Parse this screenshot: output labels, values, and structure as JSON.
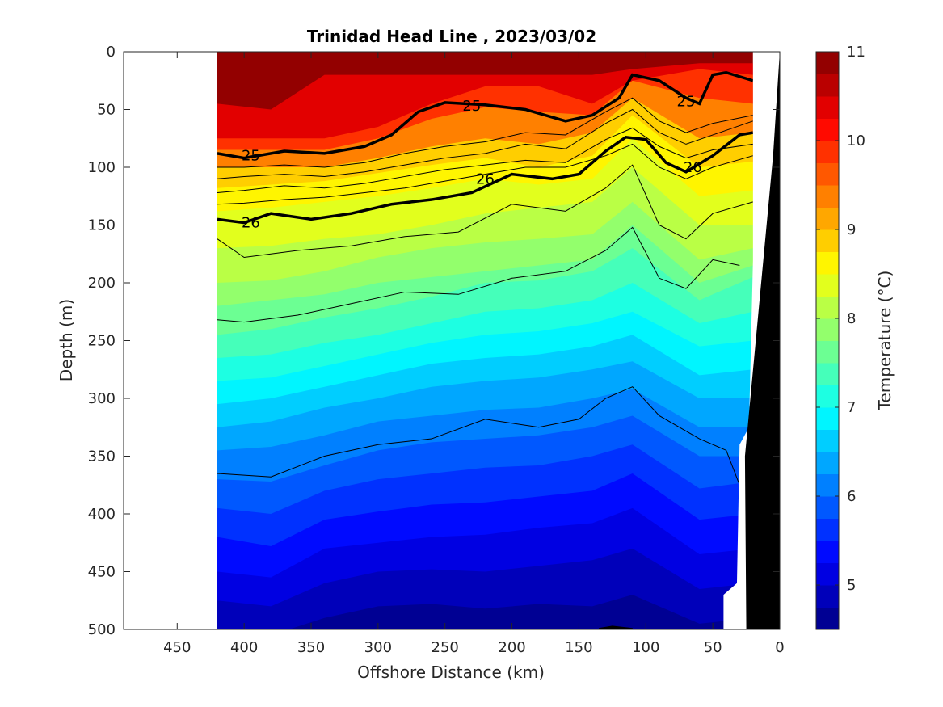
{
  "chart_data": {
    "type": "contourf",
    "title": "Trinidad Head Line , 2023/03/02",
    "xlabel": "Offshore Distance (km)",
    "ylabel": "Depth (m)",
    "colorbar_label": "Temperature (°C)",
    "xlim": [
      490,
      0
    ],
    "ylim": [
      0,
      500
    ],
    "x_reversed": true,
    "y_reversed": true,
    "x_ticks": [
      450,
      400,
      350,
      300,
      250,
      200,
      150,
      100,
      50,
      0
    ],
    "y_ticks": [
      0,
      50,
      100,
      150,
      200,
      250,
      300,
      350,
      400,
      450,
      500
    ],
    "colorbar": {
      "range": [
        4.5,
        11
      ],
      "step": 0.25,
      "ticks": [
        5,
        6,
        7,
        8,
        9,
        10,
        11
      ],
      "colormap": "jet"
    },
    "data_extent_km": [
      420,
      20
    ],
    "coastline_color": "#000000",
    "temperature_isotherms": [
      {
        "value": 10.5,
        "depth": [
          45,
          50,
          20,
          20,
          20,
          20,
          20,
          20,
          15,
          10,
          10
        ]
      },
      {
        "value": 10.0,
        "depth": [
          75,
          75,
          75,
          65,
          45,
          30,
          30,
          45,
          25,
          15,
          20
        ]
      },
      {
        "value": 9.5,
        "depth": [
          85,
          85,
          85,
          75,
          58,
          48,
          52,
          55,
          25,
          40,
          45
        ]
      },
      {
        "value": 9.0,
        "depth": [
          100,
          100,
          100,
          92,
          82,
          75,
          80,
          70,
          40,
          75,
          70
        ]
      },
      {
        "value": 8.75,
        "depth": [
          118,
          115,
          112,
          105,
          98,
          92,
          100,
          90,
          55,
          100,
          95
        ]
      },
      {
        "value": 8.5,
        "depth": [
          138,
          135,
          130,
          125,
          118,
          110,
          115,
          110,
          75,
          125,
          120
        ]
      },
      {
        "value": 8.25,
        "depth": [
          170,
          168,
          162,
          158,
          150,
          140,
          135,
          130,
          100,
          150,
          150
        ]
      },
      {
        "value": 8.0,
        "depth": [
          200,
          198,
          190,
          178,
          170,
          165,
          162,
          158,
          130,
          180,
          170
        ]
      },
      {
        "value": 7.75,
        "depth": [
          220,
          215,
          210,
          200,
          195,
          190,
          185,
          180,
          150,
          200,
          185
        ]
      },
      {
        "value": 7.5,
        "depth": [
          245,
          240,
          230,
          222,
          212,
          200,
          198,
          190,
          170,
          215,
          195
        ]
      },
      {
        "value": 7.25,
        "depth": [
          265,
          262,
          252,
          245,
          235,
          225,
          222,
          215,
          200,
          235,
          225
        ]
      },
      {
        "value": 7.0,
        "depth": [
          285,
          282,
          272,
          262,
          252,
          245,
          242,
          235,
          225,
          255,
          250
        ]
      },
      {
        "value": 6.75,
        "depth": [
          305,
          300,
          290,
          280,
          270,
          265,
          262,
          255,
          245,
          280,
          275
        ]
      },
      {
        "value": 6.5,
        "depth": [
          325,
          320,
          308,
          300,
          290,
          285,
          282,
          275,
          268,
          300,
          300
        ]
      },
      {
        "value": 6.25,
        "depth": [
          345,
          342,
          332,
          320,
          315,
          310,
          308,
          300,
          292,
          325,
          325
        ]
      },
      {
        "value": 6.0,
        "depth": [
          370,
          372,
          358,
          345,
          338,
          335,
          332,
          325,
          315,
          350,
          350
        ]
      },
      {
        "value": 5.75,
        "depth": [
          395,
          400,
          380,
          370,
          365,
          360,
          358,
          350,
          340,
          378,
          372
        ]
      },
      {
        "value": 5.5,
        "depth": [
          420,
          428,
          405,
          398,
          392,
          390,
          385,
          380,
          365,
          405,
          400
        ]
      },
      {
        "value": 5.25,
        "depth": [
          450,
          455,
          430,
          425,
          420,
          418,
          412,
          408,
          395,
          435,
          430
        ]
      },
      {
        "value": 5.0,
        "depth": [
          475,
          480,
          460,
          450,
          448,
          450,
          445,
          440,
          430,
          465,
          460
        ]
      },
      {
        "value": 4.75,
        "depth": [
          500,
          505,
          490,
          480,
          478,
          482,
          478,
          480,
          470,
          495,
          490
        ]
      }
    ],
    "isotherm_x": [
      420,
      380,
      340,
      300,
      260,
      220,
      180,
      140,
      110,
      60,
      20
    ],
    "density_contours_thin": [
      {
        "x": [
          420,
          400,
          370,
          340,
          310,
          280,
          250,
          220,
          190,
          160,
          130,
          110,
          90,
          70,
          50,
          20
        ],
        "depth": [
          100,
          100,
          98,
          100,
          96,
          88,
          82,
          78,
          70,
          72,
          52,
          40,
          60,
          70,
          62,
          55
        ]
      },
      {
        "x": [
          420,
          400,
          370,
          340,
          310,
          280,
          250,
          220,
          190,
          160,
          130,
          110,
          90,
          70,
          50,
          20
        ],
        "depth": [
          110,
          108,
          106,
          108,
          104,
          98,
          92,
          88,
          80,
          84,
          62,
          50,
          70,
          80,
          72,
          60
        ]
      },
      {
        "x": [
          420,
          400,
          370,
          340,
          310,
          280,
          250,
          220,
          190,
          160,
          130,
          110,
          90,
          70,
          50,
          20
        ],
        "depth": [
          122,
          120,
          116,
          118,
          114,
          108,
          102,
          98,
          94,
          96,
          76,
          66,
          82,
          92,
          85,
          80
        ]
      },
      {
        "x": [
          420,
          400,
          370,
          340,
          310,
          280,
          250,
          220,
          190,
          160,
          130,
          110,
          90,
          70,
          50,
          20
        ],
        "depth": [
          132,
          131,
          128,
          126,
          122,
          118,
          112,
          106,
          100,
          100,
          90,
          80,
          100,
          110,
          100,
          90
        ]
      },
      {
        "x": [
          420,
          400,
          360,
          320,
          280,
          240,
          200,
          160,
          130,
          110,
          90,
          70,
          50,
          20
        ],
        "depth": [
          162,
          178,
          172,
          168,
          160,
          156,
          132,
          138,
          118,
          98,
          150,
          162,
          140,
          130
        ]
      },
      {
        "x": [
          420,
          400,
          360,
          320,
          280,
          240,
          200,
          160,
          130,
          110,
          90,
          70,
          50,
          30
        ],
        "depth": [
          232,
          234,
          228,
          218,
          208,
          210,
          196,
          190,
          172,
          152,
          196,
          205,
          180,
          185
        ]
      },
      {
        "x": [
          420,
          380,
          340,
          300,
          260,
          220,
          180,
          150,
          130,
          110,
          90,
          60,
          40,
          30
        ],
        "depth": [
          365,
          368,
          350,
          340,
          335,
          318,
          325,
          318,
          300,
          290,
          315,
          335,
          345,
          375
        ]
      }
    ],
    "density_contours_bold": [
      {
        "value": "25",
        "x": [
          420,
          400,
          370,
          340,
          310,
          290,
          270,
          250,
          220,
          190,
          160,
          140,
          120,
          110,
          90,
          70,
          60,
          50,
          40,
          20
        ],
        "depth": [
          88,
          92,
          86,
          88,
          82,
          72,
          52,
          44,
          46,
          50,
          60,
          55,
          40,
          20,
          25,
          40,
          45,
          20,
          18,
          25
        ]
      },
      {
        "value": "26",
        "x": [
          420,
          400,
          380,
          350,
          320,
          290,
          260,
          230,
          200,
          170,
          150,
          130,
          115,
          100,
          85,
          70,
          50,
          30,
          20
        ],
        "depth": [
          145,
          148,
          140,
          145,
          140,
          132,
          128,
          122,
          106,
          110,
          106,
          86,
          74,
          76,
          96,
          104,
          90,
          72,
          70
        ]
      }
    ],
    "contour_labels": [
      {
        "text": "25",
        "x": 395,
        "depth": 90
      },
      {
        "text": "25",
        "x": 230,
        "depth": 47
      },
      {
        "text": "25",
        "x": 70,
        "depth": 43
      },
      {
        "text": "26",
        "x": 395,
        "depth": 148
      },
      {
        "text": "26",
        "x": 220,
        "depth": 110
      },
      {
        "text": "26",
        "x": 65,
        "depth": 100
      }
    ],
    "bottom_contour": {
      "x": [
        135,
        125,
        110
      ],
      "depth": [
        500,
        498,
        500
      ]
    }
  }
}
